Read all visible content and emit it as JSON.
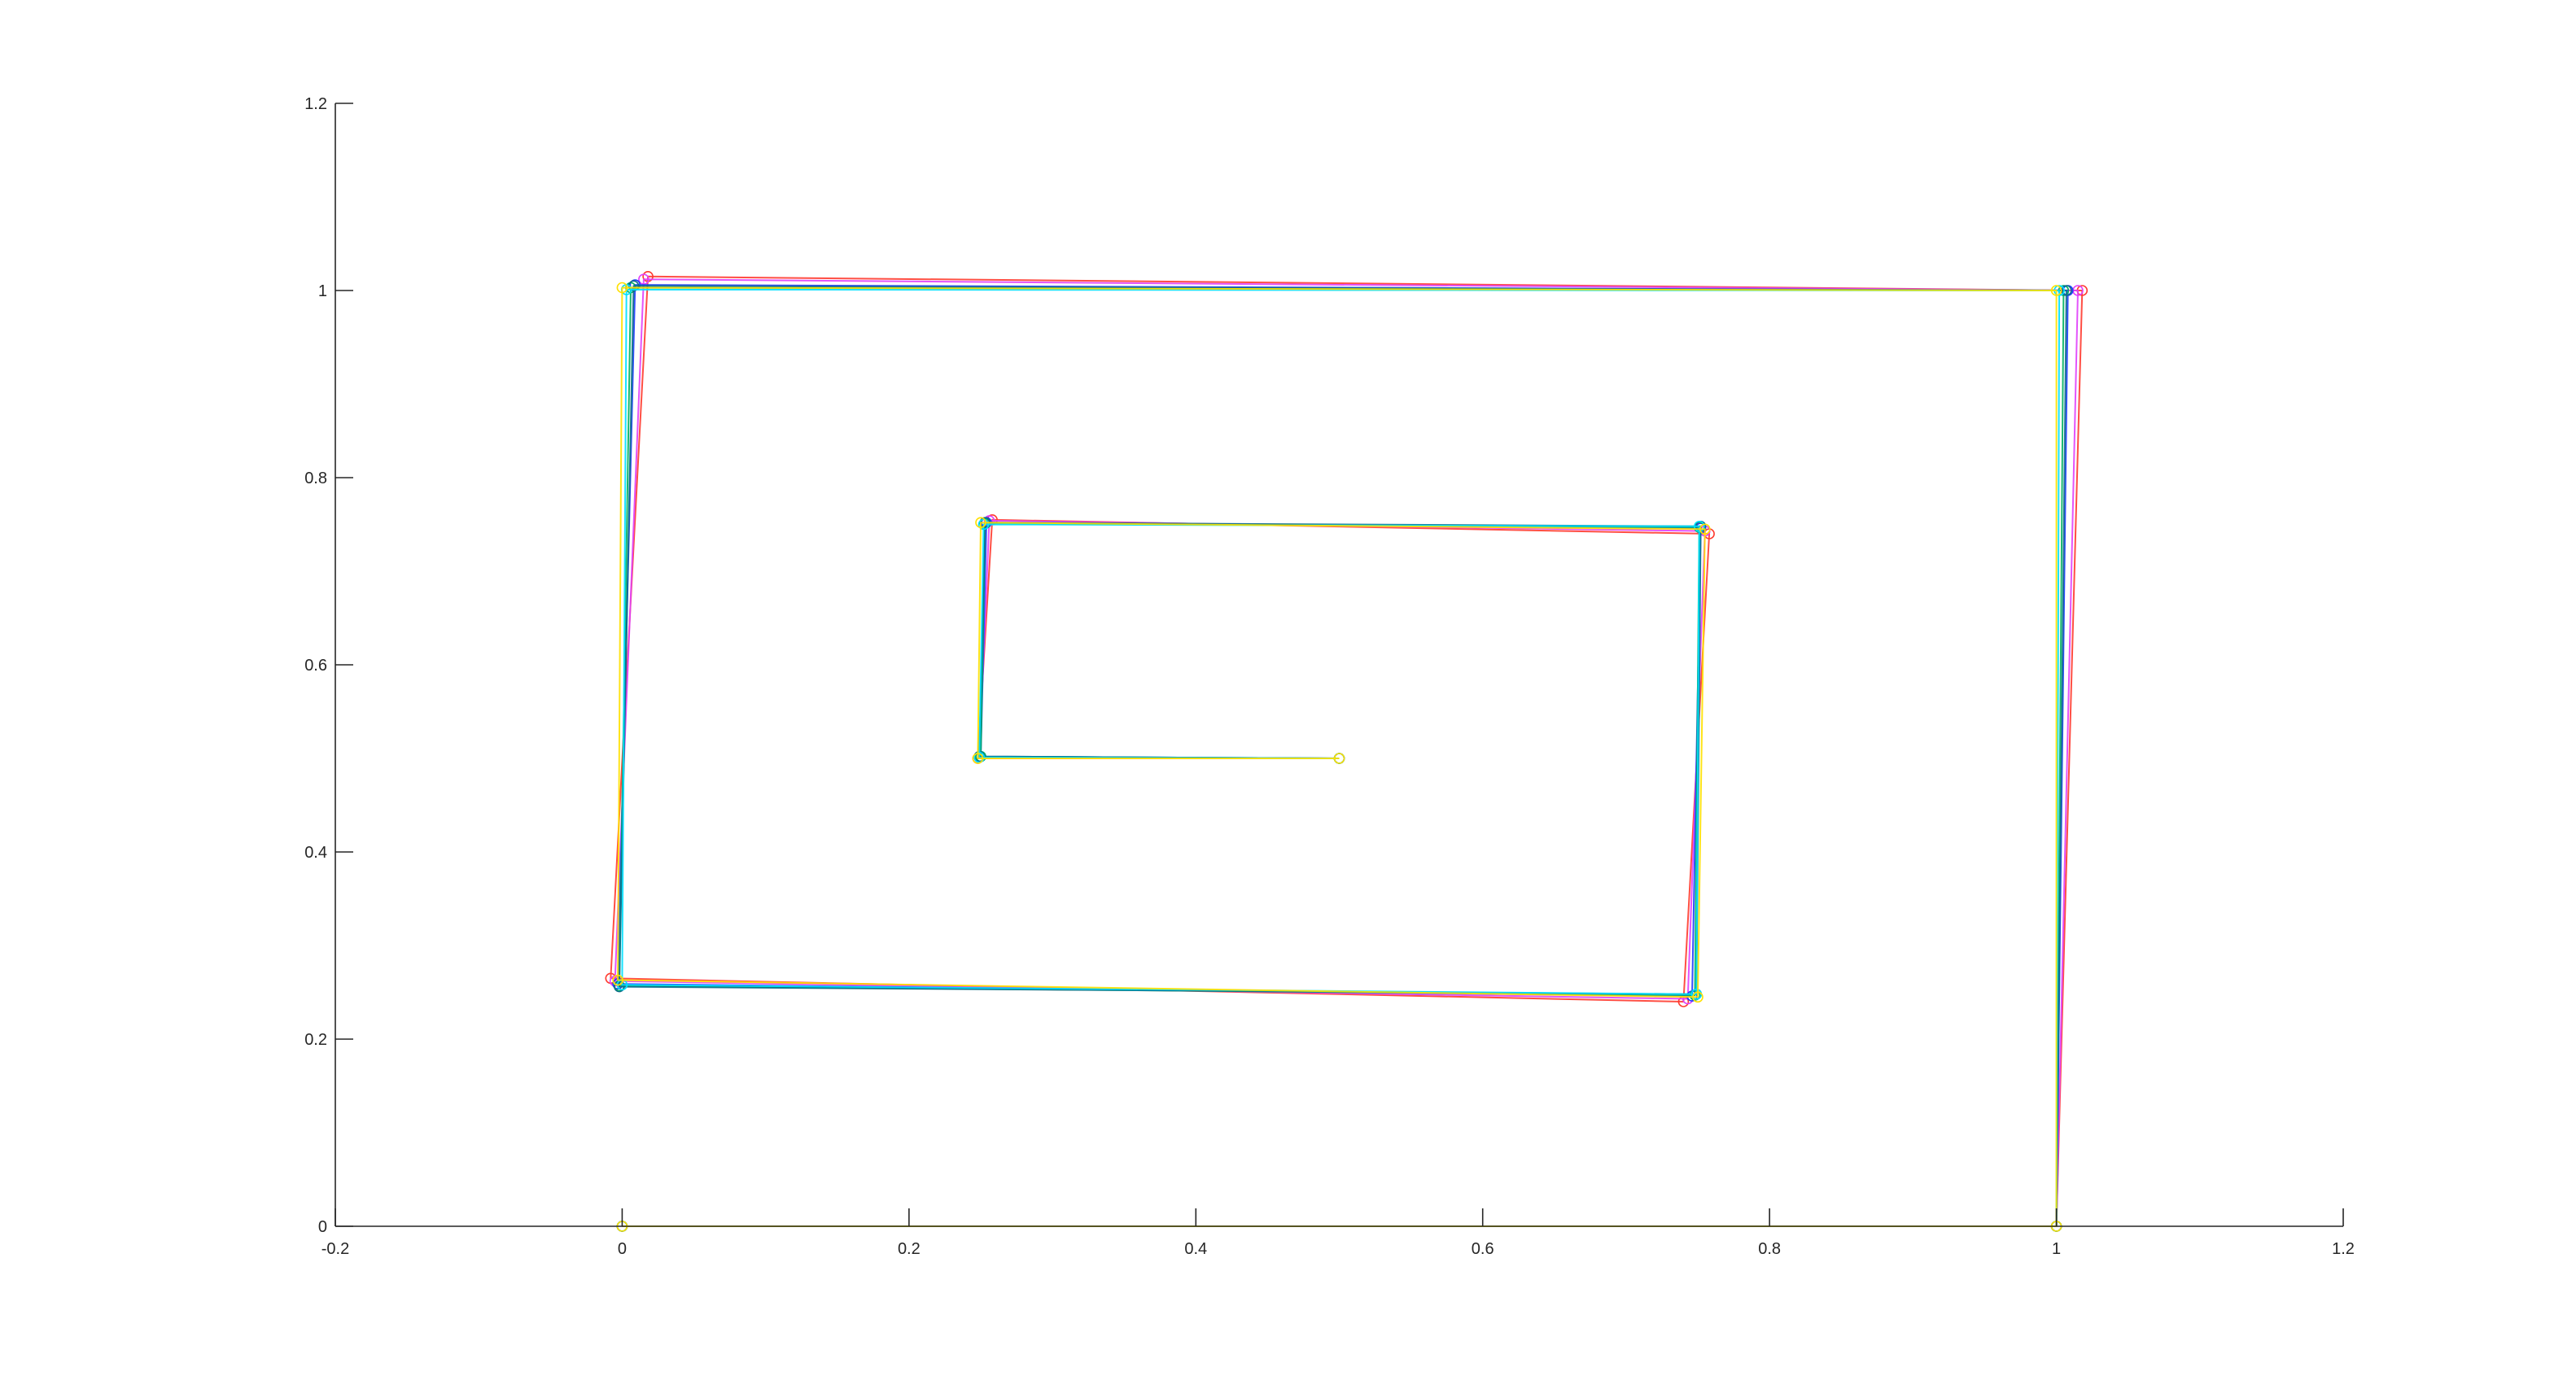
{
  "chart_data": {
    "type": "line",
    "title": "",
    "xlabel": "",
    "ylabel": "",
    "xlim": [
      -0.2,
      1.2
    ],
    "ylim": [
      0,
      1.2
    ],
    "x_ticks": [
      -0.2,
      0,
      0.2,
      0.4,
      0.6,
      0.8,
      1,
      1.2
    ],
    "x_tick_labels": [
      "-0.2",
      "0",
      "0.2",
      "0.4",
      "0.6",
      "0.8",
      "1",
      "1.2"
    ],
    "y_ticks": [
      0,
      0.2,
      0.4,
      0.6,
      0.8,
      1,
      1.2
    ],
    "y_tick_labels": [
      "0",
      "0.2",
      "0.4",
      "0.6",
      "0.8",
      "1",
      "1.2"
    ],
    "grid": false,
    "legend": "none",
    "series": [
      {
        "color": "#ff3b30",
        "marker": "circle",
        "x": [
          0,
          1,
          1.018,
          0.018,
          -0.008,
          0.74,
          0.758,
          0.258,
          0.248,
          0.5
        ],
        "y": [
          0,
          0,
          1.0,
          1.015,
          0.265,
          0.24,
          0.74,
          0.755,
          0.5,
          0.5
        ]
      },
      {
        "color": "#e040fb",
        "marker": "circle",
        "x": [
          0,
          1,
          1.015,
          0.015,
          -0.005,
          0.743,
          0.755,
          0.256,
          0.249,
          0.5
        ],
        "y": [
          0,
          0,
          1.0,
          1.012,
          0.262,
          0.243,
          0.743,
          0.754,
          0.501,
          0.5
        ]
      },
      {
        "color": "#1e3cff",
        "marker": "circle",
        "x": [
          0,
          1,
          1.008,
          0.009,
          -0.003,
          0.746,
          0.752,
          0.254,
          0.25,
          0.5
        ],
        "y": [
          0,
          0,
          1.0,
          1.006,
          0.259,
          0.246,
          0.746,
          0.752,
          0.502,
          0.5
        ]
      },
      {
        "color": "#00b060",
        "marker": "circle",
        "x": [
          0,
          1,
          1.005,
          0.006,
          -0.002,
          0.748,
          0.751,
          0.253,
          0.25,
          0.5
        ],
        "y": [
          0,
          0,
          1.0,
          1.003,
          0.257,
          0.247,
          0.747,
          0.751,
          0.502,
          0.5
        ]
      },
      {
        "color": "#0b6e8a",
        "marker": "circle",
        "x": [
          0,
          1,
          1.007,
          0.008,
          -0.002,
          0.749,
          0.752,
          0.253,
          0.249,
          0.5
        ],
        "y": [
          0,
          0,
          1.0,
          1.005,
          0.256,
          0.248,
          0.748,
          0.752,
          0.502,
          0.5
        ]
      },
      {
        "color": "#00e0ff",
        "marker": "circle",
        "x": [
          0,
          1,
          1.002,
          0.003,
          0.0,
          0.749,
          0.751,
          0.252,
          0.249,
          0.5
        ],
        "y": [
          0,
          0,
          1.0,
          1.001,
          0.258,
          0.248,
          0.748,
          0.75,
          0.501,
          0.5
        ]
      },
      {
        "color": "#ffe000",
        "marker": "circle",
        "x": [
          0,
          1,
          1.0,
          0.0,
          -0.003,
          0.75,
          0.755,
          0.25,
          0.248,
          0.5
        ],
        "y": [
          0,
          0,
          1.0,
          1.003,
          0.263,
          0.245,
          0.745,
          0.752,
          0.5,
          0.5
        ]
      }
    ]
  }
}
